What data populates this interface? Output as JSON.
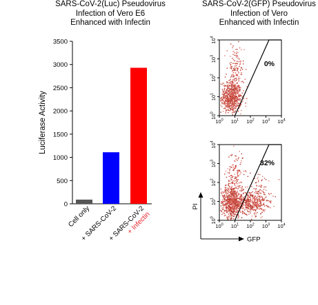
{
  "chart_data": [
    {
      "type": "bar",
      "title": [
        "SARS-CoV-2(Luc) Pseudovirus",
        "Infection of Vero E6",
        "Enhanced with Infectin"
      ],
      "xlabel": "",
      "ylabel": "Luciferase Activity",
      "ylim": [
        0,
        3500
      ],
      "yticks": [
        0,
        500,
        1000,
        1500,
        2000,
        2500,
        3000,
        3500
      ],
      "categories": [
        {
          "lines": [
            "Cell only"
          ],
          "colors": [
            "#000000"
          ]
        },
        {
          "lines": [
            "SARS-CoV-2"
          ],
          "prefix": "+",
          "colors": [
            "#000000"
          ]
        },
        {
          "lines": [
            "SARS-CoV-2",
            "Infectin"
          ],
          "prefix": "+",
          "colors": [
            "#000000",
            "#e8262e"
          ]
        }
      ],
      "values": [
        90,
        1110,
        2930
      ],
      "colors": [
        "#555555",
        "#0000ff",
        "#ff0000"
      ],
      "grid": false
    },
    {
      "type": "scatter",
      "title": [
        "SARS-CoV-2(GFP) Pseudovirus",
        "Infection of Vero",
        "Enhanced with Infectin"
      ],
      "xlabel": "GFP",
      "ylabel": "PI",
      "xscale": "log",
      "yscale": "log",
      "xlim": [
        1,
        10000
      ],
      "ylim": [
        1,
        10000
      ],
      "tick_exponents": [
        0,
        1,
        2,
        3,
        4
      ],
      "point_color": "#c0392b",
      "panels": [
        {
          "gate_percent": "0%"
        },
        {
          "gate_percent": "32%"
        }
      ]
    }
  ]
}
